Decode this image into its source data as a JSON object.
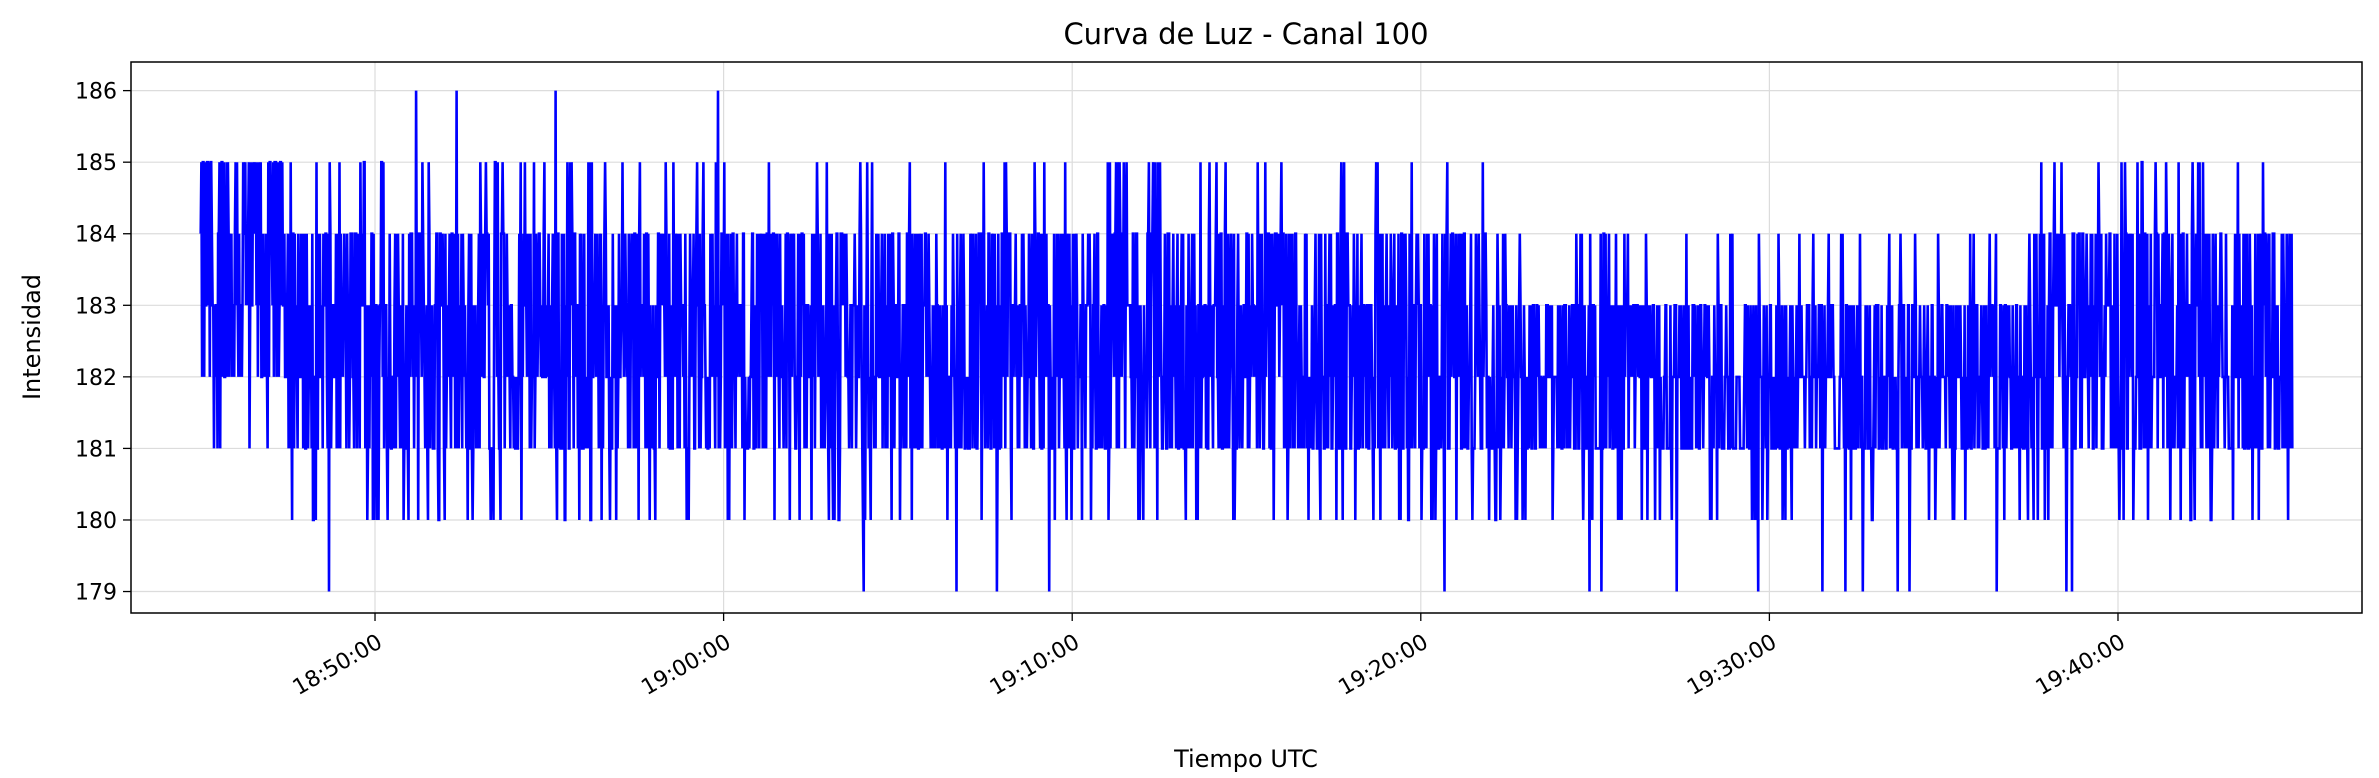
{
  "chart_data": {
    "type": "line",
    "title": "Curva de Luz - Canal 100",
    "xlabel": "Tiempo UTC",
    "ylabel": "Intensidad",
    "x_start": "18:45:00",
    "x_end": "19:45:00",
    "xlim": [
      "18:43:00",
      "19:47:00"
    ],
    "ylim": [
      178.7,
      186.4
    ],
    "y_ticks": [
      179,
      180,
      181,
      182,
      183,
      184,
      185,
      186
    ],
    "x_ticks": [
      "18:50:00",
      "19:00:00",
      "19:10:00",
      "19:20:00",
      "19:30:00",
      "19:40:00"
    ],
    "grid": true,
    "series": [
      {
        "color": "#0000ff",
        "profile": [
          {
            "time": "18:45:00",
            "low": 182,
            "high": 185
          },
          {
            "time": "18:50:00",
            "low": 181,
            "high": 184
          },
          {
            "time": "18:55:00",
            "low": 181,
            "high": 184
          },
          {
            "time": "19:00:00",
            "low": 181,
            "high": 184
          },
          {
            "time": "19:05:00",
            "low": 181,
            "high": 184
          },
          {
            "time": "19:10:00",
            "low": 181,
            "high": 184
          },
          {
            "time": "19:15:00",
            "low": 181,
            "high": 184
          },
          {
            "time": "19:20:00",
            "low": 181,
            "high": 184
          },
          {
            "time": "19:25:00",
            "low": 181,
            "high": 183
          },
          {
            "time": "19:30:00",
            "low": 181,
            "high": 183
          },
          {
            "time": "19:35:00",
            "low": 181,
            "high": 183
          },
          {
            "time": "19:40:00",
            "low": 181,
            "high": 184
          },
          {
            "time": "19:45:00",
            "low": 181,
            "high": 184
          }
        ],
        "spikes": [
          {
            "time": "18:48:40",
            "value": 179
          },
          {
            "time": "18:51:10",
            "value": 186
          },
          {
            "time": "18:52:20",
            "value": 186
          },
          {
            "time": "18:55:10",
            "value": 186
          },
          {
            "time": "18:59:50",
            "value": 186
          },
          {
            "time": "19:04:00",
            "value": 179
          },
          {
            "time": "19:06:40",
            "value": 179
          },
          {
            "time": "19:07:50",
            "value": 179
          },
          {
            "time": "19:09:20",
            "value": 179
          },
          {
            "time": "19:20:40",
            "value": 179
          },
          {
            "time": "19:24:50",
            "value": 179
          },
          {
            "time": "19:25:10",
            "value": 179
          },
          {
            "time": "19:27:20",
            "value": 179
          },
          {
            "time": "19:29:40",
            "value": 179
          },
          {
            "time": "19:31:30",
            "value": 179
          },
          {
            "time": "19:32:10",
            "value": 179
          },
          {
            "time": "19:32:40",
            "value": 179
          },
          {
            "time": "19:33:40",
            "value": 179
          },
          {
            "time": "19:34:00",
            "value": 179
          },
          {
            "time": "19:36:30",
            "value": 179
          },
          {
            "time": "19:38:30",
            "value": 179
          },
          {
            "time": "19:38:40",
            "value": 179
          }
        ]
      }
    ]
  }
}
